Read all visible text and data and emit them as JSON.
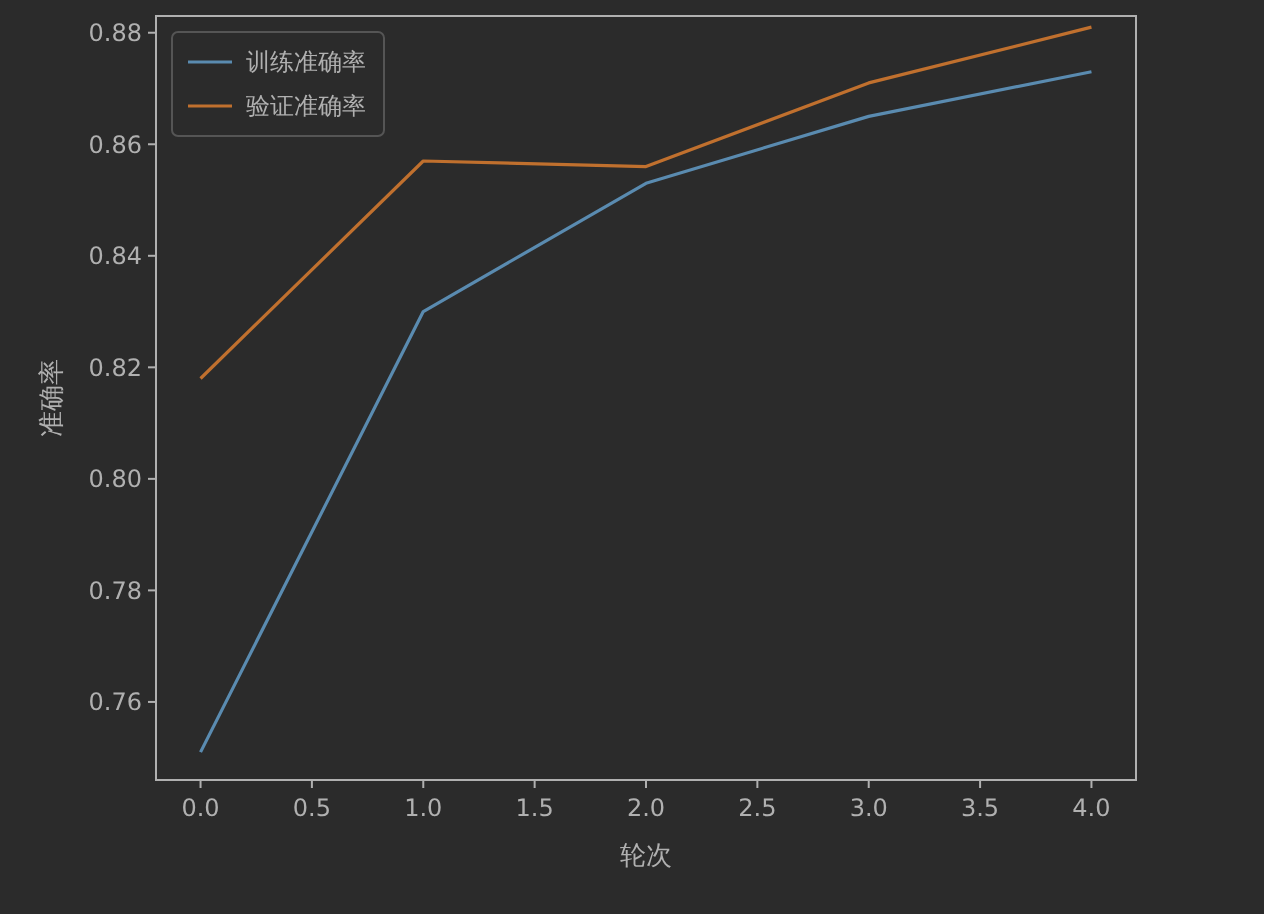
{
  "chart_data": {
    "type": "line",
    "xlabel": "轮次",
    "ylabel": "准确率",
    "x": [
      0,
      1,
      2,
      3,
      4
    ],
    "series": [
      {
        "name": "训练准确率",
        "color": "#5a8bb0",
        "values": [
          0.751,
          0.83,
          0.853,
          0.865,
          0.873
        ]
      },
      {
        "name": "验证准确率",
        "color": "#c0702e",
        "values": [
          0.818,
          0.857,
          0.856,
          0.871,
          0.881
        ]
      }
    ],
    "xlim": [
      -0.2,
      4.2
    ],
    "xticks": [
      {
        "value": 0,
        "label": "0.0"
      },
      {
        "value": 0.5,
        "label": "0.5"
      },
      {
        "value": 1,
        "label": "1.0"
      },
      {
        "value": 1.5,
        "label": "1.5"
      },
      {
        "value": 2,
        "label": "2.0"
      },
      {
        "value": 2.5,
        "label": "2.5"
      },
      {
        "value": 3,
        "label": "3.0"
      },
      {
        "value": 3.5,
        "label": "3.5"
      },
      {
        "value": 4,
        "label": "4.0"
      }
    ],
    "ylim": [
      0.746,
      0.883
    ],
    "yticks": [
      {
        "value": 0.76,
        "label": "0.76"
      },
      {
        "value": 0.78,
        "label": "0.78"
      },
      {
        "value": 0.8,
        "label": "0.80"
      },
      {
        "value": 0.82,
        "label": "0.82"
      },
      {
        "value": 0.84,
        "label": "0.84"
      },
      {
        "value": 0.86,
        "label": "0.86"
      },
      {
        "value": 0.88,
        "label": "0.88"
      }
    ],
    "legend": "top left",
    "grid": false,
    "marker": "none",
    "line_style": "solid"
  }
}
